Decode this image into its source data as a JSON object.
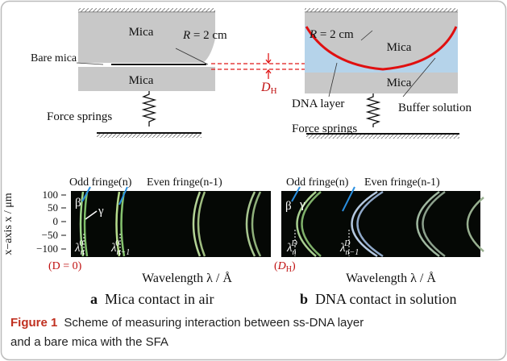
{
  "panel_a": {
    "schematic": {
      "upper_mica": "Mica",
      "radius": {
        "symbol": "R",
        "text": " = 2 cm"
      },
      "bare_mica": "Bare mica",
      "lower_mica": "Mica",
      "springs": "Force springs",
      "gap": {
        "symbol": "D",
        "sub": "H"
      }
    },
    "fringes": {
      "y_label": "x−axis x / μm",
      "y_ticks": [
        "100",
        "50",
        "0",
        "−50",
        "−100"
      ],
      "odd": "Odd fringe(n)",
      "even": "Even fringe(n-1)",
      "beta": "β",
      "gamma": "γ",
      "lambda_odd": {
        "symbol": "λ",
        "sub": "n",
        "sup": "0"
      },
      "lambda_even": {
        "symbol": "λ",
        "sub": "n−1",
        "sup": "0"
      },
      "condition": "(D = 0)",
      "x_label": "Wavelength λ / Å"
    },
    "caption": {
      "letter": "a",
      "text": "Mica contact in air"
    }
  },
  "panel_b": {
    "schematic": {
      "radius": {
        "symbol": "R",
        "text": " = 2 cm"
      },
      "upper_mica": "Mica",
      "lower_mica": "Mica",
      "dna": "DNA layer",
      "buffer": "Buffer solution",
      "springs": "Force springs"
    },
    "fringes": {
      "odd": "Odd fringe(n)",
      "even": "Even fringe(n-1)",
      "beta": "β",
      "gamma": "γ",
      "lambda_odd": {
        "symbol": "λ",
        "sub": "n",
        "sup": "D"
      },
      "lambda_even": {
        "symbol": "λ",
        "sub": "n−1",
        "sup": "D"
      },
      "condition": {
        "open": "(",
        "symbol": "D",
        "sub": "H",
        "close": ")"
      },
      "x_label": "Wavelength λ / Å"
    },
    "caption": {
      "letter": "b",
      "text": "DNA contact in solution"
    }
  },
  "figure_caption": {
    "label": "Figure 1",
    "line1": "Scheme of measuring interaction between ss-DNA layer",
    "line2": "and a bare mica with the SFA"
  }
}
